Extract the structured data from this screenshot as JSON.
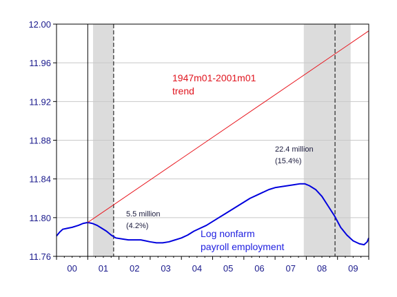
{
  "chart_data": {
    "type": "line",
    "title": "",
    "xlabel": "",
    "ylabel": "",
    "x_range": [
      2000.0,
      2010.0
    ],
    "ylim": [
      11.76,
      12.0
    ],
    "x_tick_labels": [
      "00",
      "01",
      "02",
      "03",
      "04",
      "05",
      "06",
      "07",
      "08",
      "09"
    ],
    "y_ticks": [
      11.76,
      11.8,
      11.84,
      11.88,
      11.92,
      11.96,
      12.0
    ],
    "y_tick_labels": [
      "11.76",
      "11.80",
      "11.84",
      "11.88",
      "11.92",
      "11.96",
      "12.00"
    ],
    "grid": "horizontal",
    "recession_shading": [
      [
        2001.17,
        2001.83
      ],
      [
        2007.92,
        2009.42
      ]
    ],
    "vertical_lines": [
      {
        "x": 2001.0,
        "style": "solid"
      },
      {
        "x": 2001.83,
        "style": "dashed"
      },
      {
        "x": 2008.92,
        "style": "dashed"
      }
    ],
    "series": [
      {
        "color": "#0000dd",
        "points": [
          [
            2000.0,
            11.781
          ],
          [
            2000.1,
            11.785
          ],
          [
            2000.2,
            11.788
          ],
          [
            2000.35,
            11.789
          ],
          [
            2000.5,
            11.79
          ],
          [
            2000.7,
            11.792
          ],
          [
            2000.85,
            11.794
          ],
          [
            2001.0,
            11.795
          ],
          [
            2001.15,
            11.794
          ],
          [
            2001.3,
            11.792
          ],
          [
            2001.45,
            11.789
          ],
          [
            2001.6,
            11.786
          ],
          [
            2001.75,
            11.782
          ],
          [
            2001.9,
            11.779
          ],
          [
            2002.1,
            11.778
          ],
          [
            2002.3,
            11.777
          ],
          [
            2002.5,
            11.777
          ],
          [
            2002.7,
            11.777
          ],
          [
            2002.85,
            11.776
          ],
          [
            2003.0,
            11.775
          ],
          [
            2003.2,
            11.774
          ],
          [
            2003.4,
            11.774
          ],
          [
            2003.6,
            11.775
          ],
          [
            2003.8,
            11.777
          ],
          [
            2004.0,
            11.779
          ],
          [
            2004.2,
            11.782
          ],
          [
            2004.4,
            11.786
          ],
          [
            2004.6,
            11.789
          ],
          [
            2004.8,
            11.792
          ],
          [
            2005.0,
            11.796
          ],
          [
            2005.2,
            11.8
          ],
          [
            2005.4,
            11.804
          ],
          [
            2005.6,
            11.808
          ],
          [
            2005.8,
            11.812
          ],
          [
            2006.0,
            11.816
          ],
          [
            2006.2,
            11.82
          ],
          [
            2006.4,
            11.823
          ],
          [
            2006.6,
            11.826
          ],
          [
            2006.8,
            11.829
          ],
          [
            2007.0,
            11.831
          ],
          [
            2007.2,
            11.832
          ],
          [
            2007.4,
            11.833
          ],
          [
            2007.6,
            11.834
          ],
          [
            2007.8,
            11.835
          ],
          [
            2007.95,
            11.835
          ],
          [
            2008.1,
            11.833
          ],
          [
            2008.3,
            11.829
          ],
          [
            2008.5,
            11.822
          ],
          [
            2008.7,
            11.812
          ],
          [
            2008.9,
            11.802
          ],
          [
            2009.1,
            11.79
          ],
          [
            2009.3,
            11.782
          ],
          [
            2009.5,
            11.776
          ],
          [
            2009.7,
            11.773
          ],
          [
            2009.85,
            11.772
          ],
          [
            2009.95,
            11.775
          ],
          [
            2010.0,
            11.779
          ]
        ]
      },
      {
        "color": "#e8161e",
        "points": [
          [
            2001.0,
            11.795
          ],
          [
            2010.0,
            11.993
          ]
        ]
      }
    ],
    "annotations": {
      "trend_label_line1": "1947m01-2001m01",
      "trend_label_line2": "trend",
      "emp_label_line1": "Log nonfarm",
      "emp_label_line2": "payroll employment",
      "gap2002_line1": "5.5 million",
      "gap2002_line2": "(4.2%)",
      "gap2008_line1": "22.4 million",
      "gap2008_line2": "(15.4%)"
    }
  }
}
